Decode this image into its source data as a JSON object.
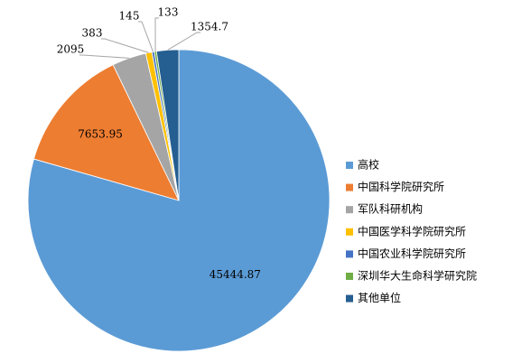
{
  "chart_data": {
    "type": "pie",
    "categories": [
      "高校",
      "中国科学院研究所",
      "军队科研机构",
      "中国医学科学院研究所",
      "中国农业科学院研究所",
      "深圳华大生命科学研究院",
      "其他单位"
    ],
    "values": [
      45444.87,
      7653.95,
      2095,
      383,
      145,
      133,
      1354.7
    ],
    "value_labels": [
      "45444.87",
      "7653.95",
      "2095",
      "383",
      "145",
      "133",
      "1354.7"
    ],
    "colors": [
      "#5b9bd5",
      "#ed7d31",
      "#a5a5a5",
      "#ffc000",
      "#4472c4",
      "#70ad47",
      "#255e91"
    ],
    "legend": "right"
  }
}
